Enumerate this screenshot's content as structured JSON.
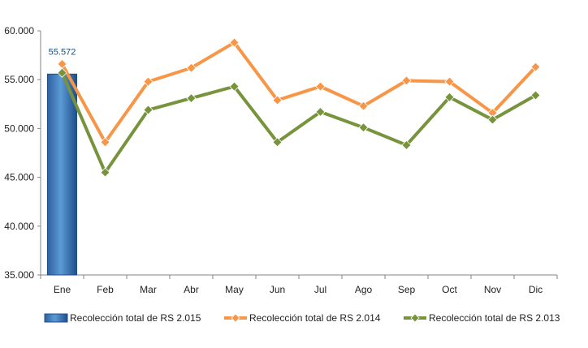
{
  "chart_data": {
    "type": "bar+line",
    "categories": [
      "Ene",
      "Feb",
      "Mar",
      "Abr",
      "May",
      "Jun",
      "Jul",
      "Ago",
      "Sep",
      "Oct",
      "Nov",
      "Dic"
    ],
    "y_ticks": [
      "35.000",
      "40.000",
      "45.000",
      "50.000",
      "55.000",
      "60.000"
    ],
    "ylim": [
      35000,
      60000
    ],
    "series": [
      {
        "name": "Recolección total de RS 2.015",
        "type": "bar",
        "color": "#3a78c9",
        "values": [
          55572,
          null,
          null,
          null,
          null,
          null,
          null,
          null,
          null,
          null,
          null,
          null
        ],
        "data_labels": [
          "55.572"
        ]
      },
      {
        "name": "Recolección total de RS 2.014",
        "type": "line",
        "color": "#f79646",
        "values": [
          56600,
          48600,
          54800,
          56200,
          58800,
          52900,
          54300,
          52300,
          54900,
          54800,
          51600,
          56300
        ]
      },
      {
        "name": "Recolección total de RS 2.013",
        "type": "line",
        "color": "#77933c",
        "values": [
          55700,
          45500,
          51900,
          53100,
          54300,
          48600,
          51700,
          50100,
          48300,
          53200,
          50900,
          53400
        ]
      }
    ],
    "legend_position": "bottom",
    "grid": false
  }
}
